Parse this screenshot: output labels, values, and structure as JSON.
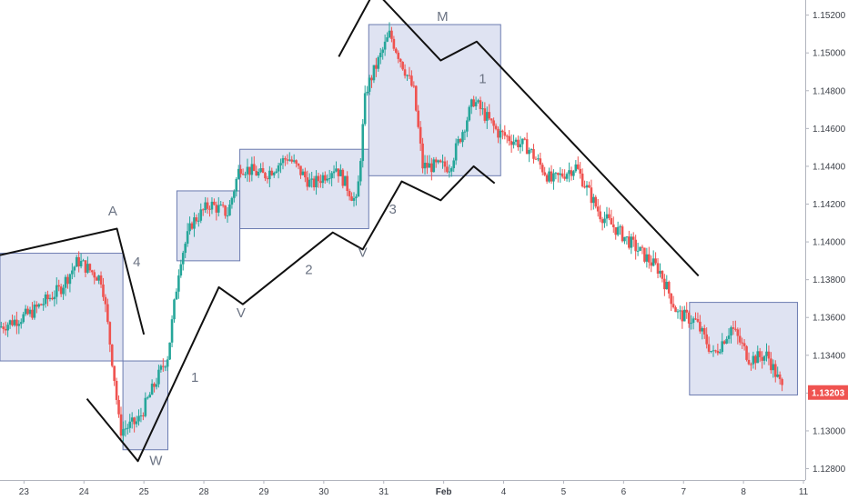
{
  "chart_data": {
    "type": "candlestick",
    "title": "",
    "xlabel": "",
    "ylabel": "",
    "ylim": [
      1.1274,
      1.1528
    ],
    "xlim": [
      0,
      13
    ],
    "x_ticks": [
      {
        "label": "23",
        "x": 0.4,
        "bold": false
      },
      {
        "label": "24",
        "x": 1.4,
        "bold": false
      },
      {
        "label": "25",
        "x": 2.4,
        "bold": false
      },
      {
        "label": "28",
        "x": 3.4,
        "bold": false
      },
      {
        "label": "29",
        "x": 4.4,
        "bold": false
      },
      {
        "label": "30",
        "x": 5.4,
        "bold": false
      },
      {
        "label": "31",
        "x": 6.4,
        "bold": false
      },
      {
        "label": "Feb",
        "x": 7.4,
        "bold": true
      },
      {
        "label": "4",
        "x": 8.4,
        "bold": false
      },
      {
        "label": "5",
        "x": 9.4,
        "bold": false
      },
      {
        "label": "6",
        "x": 10.4,
        "bold": false
      },
      {
        "label": "7",
        "x": 11.4,
        "bold": false
      },
      {
        "label": "8",
        "x": 12.4,
        "bold": false
      },
      {
        "label": "11",
        "x": 13.4,
        "bold": false
      }
    ],
    "y_ticks": [
      "1.15200",
      "1.15000",
      "1.14800",
      "1.14600",
      "1.14400",
      "1.14200",
      "1.14000",
      "1.13800",
      "1.13600",
      "1.13400",
      "1.13200",
      "1.13000",
      "1.12800"
    ],
    "y_tick_values": [
      1.152,
      1.15,
      1.148,
      1.146,
      1.144,
      1.142,
      1.14,
      1.138,
      1.136,
      1.134,
      1.132,
      1.13,
      1.128
    ],
    "last_price": "1.13203",
    "last_price_value": 1.13203,
    "up_color": "#26a69a",
    "down_color": "#ef5350",
    "box_fill": "#d7dcef",
    "box_stroke": "#6b7bb0",
    "price_path_anchors": [
      {
        "x": 0.0,
        "y": 1.1355
      },
      {
        "x": 0.5,
        "y": 1.1362
      },
      {
        "x": 1.0,
        "y": 1.1375
      },
      {
        "x": 1.3,
        "y": 1.139
      },
      {
        "x": 1.7,
        "y": 1.138
      },
      {
        "x": 1.9,
        "y": 1.133
      },
      {
        "x": 2.0,
        "y": 1.13
      },
      {
        "x": 2.3,
        "y": 1.1305
      },
      {
        "x": 2.8,
        "y": 1.134
      },
      {
        "x": 3.0,
        "y": 1.139
      },
      {
        "x": 3.2,
        "y": 1.141
      },
      {
        "x": 3.5,
        "y": 1.142
      },
      {
        "x": 3.8,
        "y": 1.1415
      },
      {
        "x": 4.0,
        "y": 1.144
      },
      {
        "x": 4.4,
        "y": 1.1435
      },
      {
        "x": 4.8,
        "y": 1.1445
      },
      {
        "x": 5.2,
        "y": 1.143
      },
      {
        "x": 5.6,
        "y": 1.144
      },
      {
        "x": 5.95,
        "y": 1.142
      },
      {
        "x": 6.1,
        "y": 1.148
      },
      {
        "x": 6.5,
        "y": 1.151
      },
      {
        "x": 6.9,
        "y": 1.148
      },
      {
        "x": 7.05,
        "y": 1.144
      },
      {
        "x": 7.5,
        "y": 1.144
      },
      {
        "x": 7.9,
        "y": 1.1475
      },
      {
        "x": 8.3,
        "y": 1.1458
      },
      {
        "x": 8.8,
        "y": 1.145
      },
      {
        "x": 9.2,
        "y": 1.1432
      },
      {
        "x": 9.6,
        "y": 1.144
      },
      {
        "x": 10.0,
        "y": 1.1415
      },
      {
        "x": 10.5,
        "y": 1.14
      },
      {
        "x": 11.0,
        "y": 1.1385
      },
      {
        "x": 11.3,
        "y": 1.1362
      },
      {
        "x": 11.6,
        "y": 1.1358
      },
      {
        "x": 11.9,
        "y": 1.134
      },
      {
        "x": 12.2,
        "y": 1.1355
      },
      {
        "x": 12.5,
        "y": 1.1338
      },
      {
        "x": 12.8,
        "y": 1.134
      },
      {
        "x": 13.05,
        "y": 1.1322
      }
    ],
    "boxes": [
      {
        "name": "box-a",
        "x0": 0.0,
        "x1": 2.05,
        "y0": 1.1337,
        "y1": 1.1394
      },
      {
        "name": "box-w",
        "x0": 2.05,
        "x1": 2.8,
        "y0": 1.129,
        "y1": 1.1337
      },
      {
        "name": "box-rise-1",
        "x0": 2.95,
        "x1": 4.0,
        "y0": 1.139,
        "y1": 1.1427
      },
      {
        "name": "box-rise-2",
        "x0": 4.0,
        "x1": 6.15,
        "y0": 1.1407,
        "y1": 1.1449
      },
      {
        "name": "box-m",
        "x0": 6.15,
        "x1": 8.35,
        "y0": 1.1435,
        "y1": 1.1515
      },
      {
        "name": "box-end",
        "x0": 11.5,
        "x1": 13.3,
        "y0": 1.1319,
        "y1": 1.1368
      }
    ],
    "lines": [
      {
        "name": "top-left-line",
        "points": [
          [
            0.0,
            1.1393
          ],
          [
            1.95,
            1.1407
          ],
          [
            2.4,
            1.1351
          ]
        ]
      },
      {
        "name": "w-wave-line",
        "points": [
          [
            1.45,
            1.1317
          ],
          [
            2.3,
            1.1284
          ],
          [
            3.65,
            1.1376
          ],
          [
            4.05,
            1.1367
          ],
          [
            5.55,
            1.1405
          ],
          [
            6.05,
            1.1396
          ],
          [
            6.7,
            1.1432
          ],
          [
            7.35,
            1.1422
          ],
          [
            7.9,
            1.144
          ],
          [
            8.25,
            1.1431
          ]
        ]
      },
      {
        "name": "top-m-line",
        "points": [
          [
            5.65,
            1.1498
          ],
          [
            6.25,
            1.1533
          ],
          [
            7.35,
            1.1496
          ],
          [
            7.95,
            1.1506
          ],
          [
            11.65,
            1.1382
          ]
        ]
      }
    ],
    "annotations": [
      {
        "text": "A",
        "x": 1.88,
        "y": 1.1414
      },
      {
        "text": "4",
        "x": 2.28,
        "y": 1.1387
      },
      {
        "text": "W",
        "x": 2.6,
        "y": 1.1282
      },
      {
        "text": "1",
        "x": 3.25,
        "y": 1.1326
      },
      {
        "text": "V",
        "x": 4.02,
        "y": 1.136
      },
      {
        "text": "2",
        "x": 5.15,
        "y": 1.1383
      },
      {
        "text": "V",
        "x": 6.05,
        "y": 1.1392
      },
      {
        "text": "3",
        "x": 6.55,
        "y": 1.1415
      },
      {
        "text": "M",
        "x": 7.38,
        "y": 1.1517
      },
      {
        "text": "1",
        "x": 8.05,
        "y": 1.1484
      }
    ]
  }
}
